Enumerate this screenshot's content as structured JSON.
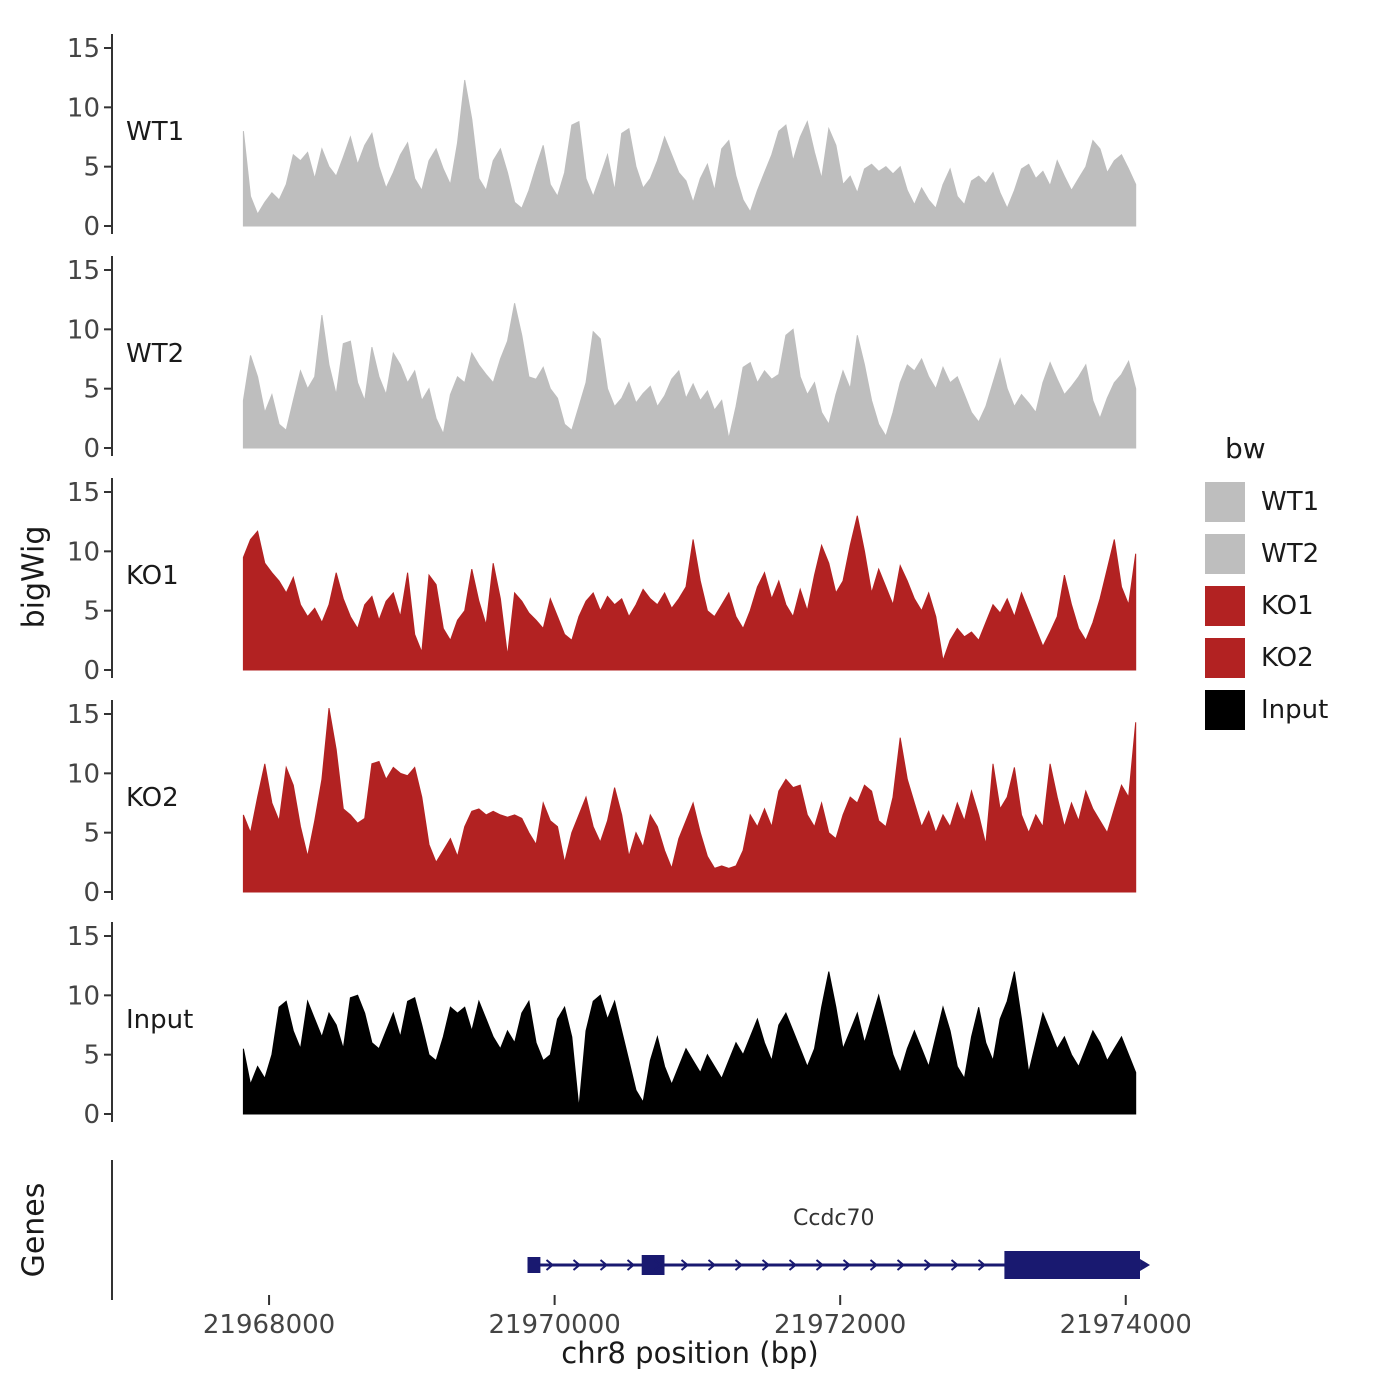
{
  "chart_data": {
    "type": "area",
    "title": "",
    "xlabel": "chr8 position (bp)",
    "ylabel": "bigWig",
    "x_start": 21967820,
    "x_step": 50,
    "x_axis": {
      "range": [
        21966900,
        21974450
      ],
      "ticks": [
        21968000,
        21970000,
        21972000,
        21974000
      ],
      "tick_labels": [
        "21968000",
        "21970000",
        "21972000",
        "21974000"
      ]
    },
    "y_axis": {
      "range": [
        0,
        15.8
      ],
      "ticks": [
        0,
        5,
        10,
        15
      ]
    },
    "legend": {
      "title": "bw",
      "position": "right",
      "entries": [
        {
          "label": "WT1",
          "color": "#BEBEBE"
        },
        {
          "label": "WT2",
          "color": "#BEBEBE"
        },
        {
          "label": "KO1",
          "color": "#B22222"
        },
        {
          "label": "KO2",
          "color": "#B22222"
        },
        {
          "label": "Input",
          "color": "#000000"
        }
      ]
    },
    "series": [
      {
        "name": "WT1",
        "color": "#BEBEBE",
        "values": [
          8.0,
          2.5,
          1.0,
          2.0,
          2.8,
          2.2,
          3.5,
          6.0,
          5.5,
          6.2,
          4.0,
          6.5,
          5.0,
          4.2,
          5.8,
          7.5,
          5.2,
          6.8,
          7.8,
          5.0,
          3.2,
          4.5,
          6.0,
          7.0,
          4.0,
          3.0,
          5.5,
          6.5,
          4.8,
          3.5,
          7.0,
          12.3,
          9.0,
          4.0,
          3.0,
          5.5,
          6.5,
          4.5,
          2.0,
          1.5,
          3.0,
          5.0,
          6.8,
          3.5,
          2.5,
          4.5,
          8.5,
          8.8,
          4.0,
          2.5,
          4.2,
          6.0,
          3.0,
          7.8,
          8.2,
          5.0,
          3.2,
          4.0,
          5.5,
          7.5,
          6.0,
          4.5,
          3.8,
          2.0,
          4.0,
          5.2,
          3.0,
          6.5,
          7.2,
          4.2,
          2.2,
          1.2,
          3.0,
          4.5,
          6.0,
          8.0,
          8.5,
          5.5,
          7.5,
          8.8,
          6.2,
          4.0,
          8.2,
          6.8,
          3.5,
          4.2,
          2.8,
          4.8,
          5.2,
          4.6,
          5.0,
          4.4,
          5.0,
          3.0,
          1.8,
          3.2,
          2.2,
          1.5,
          3.5,
          4.8,
          2.5,
          1.8,
          3.8,
          4.2,
          3.6,
          4.5,
          2.8,
          1.5,
          3.0,
          4.8,
          5.2,
          4.0,
          4.6,
          3.4,
          5.5,
          4.2,
          3.0,
          4.0,
          5.0,
          7.2,
          6.5,
          4.5,
          5.5,
          6.0,
          4.8,
          3.5
        ]
      },
      {
        "name": "WT2",
        "color": "#BEBEBE",
        "values": [
          4.0,
          7.8,
          6.0,
          3.0,
          4.5,
          2.0,
          1.5,
          4.0,
          6.5,
          5.0,
          6.0,
          11.2,
          7.0,
          4.5,
          8.8,
          9.0,
          5.5,
          4.0,
          8.5,
          6.0,
          4.5,
          8.0,
          7.0,
          5.5,
          6.5,
          4.0,
          5.0,
          2.5,
          1.2,
          4.5,
          6.0,
          5.5,
          8.0,
          7.0,
          6.2,
          5.5,
          7.5,
          9.0,
          12.2,
          9.5,
          6.0,
          5.8,
          6.8,
          5.0,
          4.2,
          2.0,
          1.5,
          3.5,
          5.5,
          9.8,
          9.2,
          5.0,
          3.5,
          4.2,
          5.5,
          3.8,
          4.6,
          5.2,
          3.5,
          4.4,
          5.8,
          6.5,
          4.2,
          5.4,
          4.0,
          4.8,
          3.2,
          4.0,
          0.8,
          3.5,
          6.8,
          7.2,
          5.5,
          6.5,
          5.8,
          6.2,
          9.5,
          10.0,
          6.0,
          4.5,
          5.5,
          3.0,
          2.0,
          4.5,
          6.5,
          5.0,
          9.5,
          7.0,
          4.0,
          2.0,
          1.0,
          3.0,
          5.5,
          7.0,
          6.5,
          7.5,
          6.0,
          5.0,
          6.8,
          5.5,
          6.0,
          4.5,
          3.0,
          2.2,
          3.5,
          5.5,
          7.5,
          5.0,
          3.5,
          4.5,
          3.8,
          3.0,
          5.5,
          7.2,
          5.8,
          4.5,
          5.2,
          6.0,
          7.0,
          4.0,
          2.5,
          4.2,
          5.5,
          6.2,
          7.3,
          5.0
        ]
      },
      {
        "name": "KO1",
        "color": "#B22222",
        "values": [
          9.5,
          11.0,
          11.7,
          9.0,
          8.2,
          7.5,
          6.5,
          7.8,
          5.5,
          4.5,
          5.2,
          4.0,
          5.5,
          8.2,
          6.0,
          4.5,
          3.5,
          5.5,
          6.2,
          4.2,
          5.8,
          6.5,
          4.5,
          8.2,
          3.0,
          1.5,
          8.0,
          7.2,
          3.5,
          2.5,
          4.2,
          5.0,
          8.5,
          5.8,
          3.8,
          9.0,
          6.0,
          1.2,
          6.5,
          5.8,
          4.8,
          4.2,
          3.5,
          6.0,
          4.5,
          3.0,
          2.5,
          4.5,
          5.8,
          6.5,
          5.0,
          6.2,
          5.5,
          6.0,
          4.5,
          5.5,
          6.8,
          6.0,
          5.5,
          6.5,
          5.2,
          6.0,
          7.0,
          11.0,
          7.5,
          5.0,
          4.5,
          5.5,
          6.5,
          4.5,
          3.5,
          5.0,
          7.0,
          8.2,
          6.0,
          7.5,
          5.5,
          4.5,
          6.8,
          5.0,
          8.0,
          10.5,
          9.0,
          6.5,
          7.5,
          10.5,
          13.0,
          10.0,
          6.5,
          8.5,
          7.0,
          5.5,
          8.8,
          7.5,
          6.0,
          5.0,
          6.5,
          4.5,
          0.8,
          2.5,
          3.5,
          2.8,
          3.2,
          2.5,
          4.0,
          5.5,
          4.8,
          6.0,
          4.5,
          6.5,
          5.0,
          3.5,
          2.0,
          3.2,
          4.5,
          8.0,
          5.5,
          3.5,
          2.5,
          4.0,
          6.0,
          8.5,
          11.0,
          7.0,
          5.5,
          9.8
        ]
      },
      {
        "name": "KO2",
        "color": "#B22222",
        "values": [
          6.5,
          5.0,
          8.0,
          10.8,
          7.5,
          6.0,
          10.5,
          9.0,
          5.5,
          3.0,
          6.0,
          9.5,
          15.5,
          12.0,
          7.0,
          6.5,
          5.8,
          6.2,
          10.8,
          11.0,
          9.5,
          10.5,
          10.0,
          9.8,
          10.5,
          8.0,
          4.0,
          2.5,
          3.5,
          4.5,
          3.0,
          5.5,
          6.8,
          7.0,
          6.5,
          6.8,
          6.5,
          6.3,
          6.5,
          6.2,
          5.0,
          4.0,
          7.5,
          6.0,
          5.5,
          2.5,
          5.0,
          6.5,
          8.0,
          5.5,
          4.2,
          6.0,
          8.8,
          6.5,
          3.0,
          5.0,
          3.8,
          6.5,
          5.5,
          3.5,
          2.0,
          4.5,
          6.0,
          7.5,
          5.0,
          3.0,
          2.0,
          2.2,
          2.0,
          2.2,
          3.5,
          6.5,
          5.5,
          7.0,
          5.5,
          8.5,
          9.5,
          8.8,
          9.0,
          6.5,
          5.5,
          7.5,
          5.0,
          4.5,
          6.5,
          8.0,
          7.5,
          9.0,
          8.5,
          6.0,
          5.5,
          8.0,
          13.0,
          9.5,
          7.5,
          5.5,
          6.8,
          5.0,
          6.5,
          5.5,
          7.5,
          6.0,
          8.5,
          6.5,
          4.0,
          10.8,
          7.0,
          8.0,
          10.5,
          6.5,
          5.0,
          6.5,
          5.5,
          10.8,
          8.0,
          5.5,
          7.5,
          6.0,
          8.5,
          7.0,
          6.0,
          5.0,
          7.0,
          9.0,
          8.0,
          14.3
        ]
      },
      {
        "name": "Input",
        "color": "#000000",
        "values": [
          5.5,
          2.5,
          4.0,
          3.0,
          5.0,
          9.0,
          9.5,
          7.0,
          5.5,
          9.5,
          8.0,
          6.5,
          8.5,
          7.5,
          5.5,
          9.8,
          10.0,
          8.5,
          6.0,
          5.5,
          7.0,
          8.5,
          6.5,
          9.5,
          9.8,
          7.5,
          5.0,
          4.5,
          6.5,
          9.0,
          8.5,
          9.0,
          7.0,
          9.5,
          8.0,
          6.5,
          5.5,
          7.0,
          6.0,
          8.5,
          9.5,
          6.0,
          4.5,
          5.0,
          8.0,
          9.0,
          6.5,
          0.5,
          7.0,
          9.5,
          10.0,
          8.0,
          9.5,
          7.0,
          4.5,
          2.0,
          1.0,
          4.5,
          6.5,
          4.0,
          2.5,
          4.0,
          5.5,
          4.5,
          3.5,
          5.0,
          4.0,
          3.0,
          4.5,
          6.0,
          5.0,
          6.5,
          8.0,
          6.0,
          4.5,
          7.5,
          8.5,
          7.0,
          5.5,
          4.0,
          5.5,
          9.0,
          12.0,
          9.0,
          5.5,
          7.0,
          8.5,
          6.0,
          8.0,
          10.0,
          7.5,
          5.0,
          3.5,
          5.5,
          7.0,
          5.5,
          4.0,
          6.5,
          9.0,
          7.0,
          4.0,
          3.0,
          6.5,
          9.0,
          6.0,
          4.5,
          8.0,
          9.5,
          12.0,
          8.0,
          3.5,
          6.0,
          8.5,
          7.0,
          5.5,
          6.5,
          5.0,
          4.0,
          5.5,
          7.0,
          6.0,
          4.5,
          5.5,
          6.5,
          5.0,
          3.5
        ]
      }
    ],
    "gene_track": {
      "panel_label": "Genes",
      "genes": [
        {
          "name": "Ccdc70",
          "chrom": "chr8",
          "start": 21969810,
          "end": 21974100,
          "strand": "+",
          "color": "#191970",
          "exons": [
            {
              "start": 21969810,
              "end": 21969900,
              "size": "small"
            },
            {
              "start": 21970610,
              "end": 21970770,
              "size": "medium"
            },
            {
              "start": 21973150,
              "end": 21974100,
              "size": "large"
            }
          ]
        }
      ]
    }
  }
}
